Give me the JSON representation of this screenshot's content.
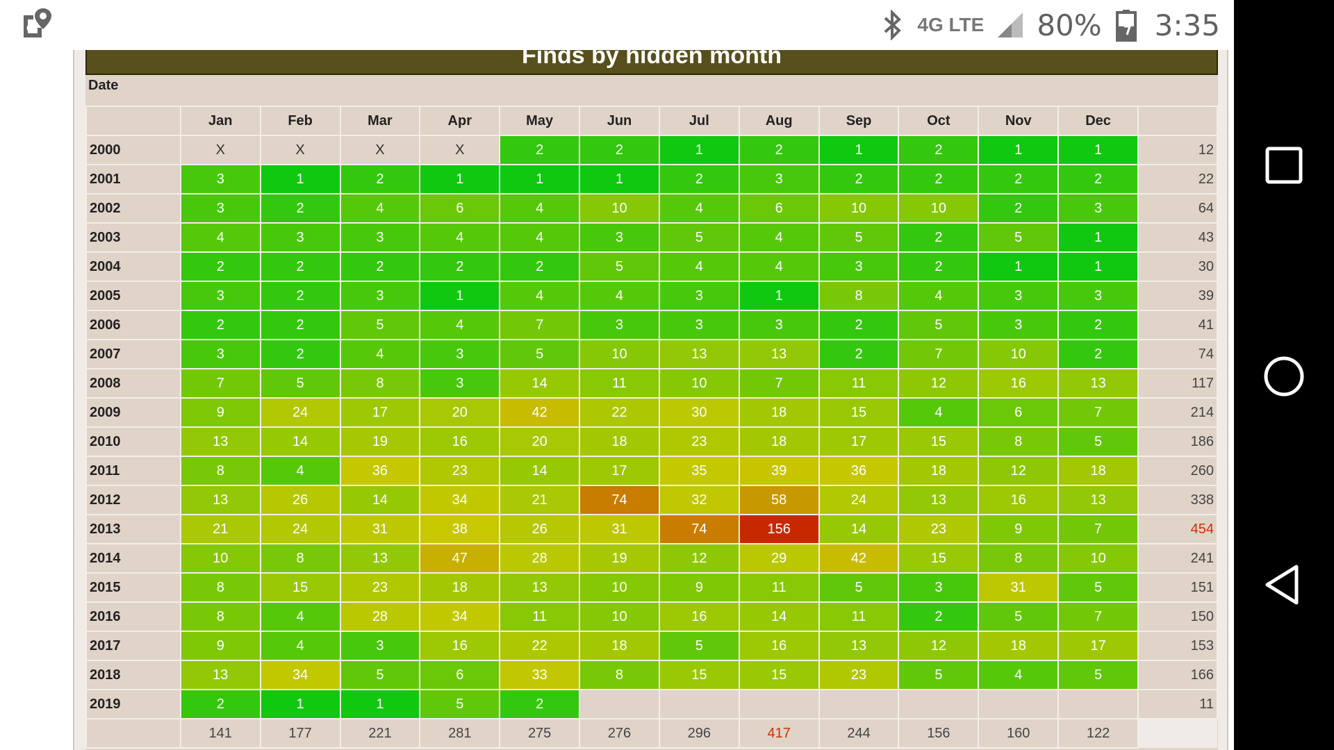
{
  "status_bar": {
    "left_icon": "maps-location-icon",
    "network": "4G LTE",
    "battery": "80%",
    "time": "3:35"
  },
  "page": {
    "title": "Finds by hidden month",
    "date_label": "Date"
  },
  "table": {
    "months": [
      "Jan",
      "Feb",
      "Mar",
      "Apr",
      "May",
      "Jun",
      "Jul",
      "Aug",
      "Sep",
      "Oct",
      "Nov",
      "Dec"
    ],
    "rows": [
      {
        "year": "2000",
        "cells": [
          "X",
          "X",
          "X",
          "X",
          "2",
          "2",
          "1",
          "2",
          "1",
          "2",
          "1",
          "1"
        ],
        "total": "12"
      },
      {
        "year": "2001",
        "cells": [
          "3",
          "1",
          "2",
          "1",
          "1",
          "1",
          "2",
          "3",
          "2",
          "2",
          "2",
          "2"
        ],
        "total": "22"
      },
      {
        "year": "2002",
        "cells": [
          "3",
          "2",
          "4",
          "6",
          "4",
          "10",
          "4",
          "6",
          "10",
          "10",
          "2",
          "3"
        ],
        "total": "64"
      },
      {
        "year": "2003",
        "cells": [
          "4",
          "3",
          "3",
          "4",
          "4",
          "3",
          "5",
          "4",
          "5",
          "2",
          "5",
          "1"
        ],
        "total": "43"
      },
      {
        "year": "2004",
        "cells": [
          "2",
          "2",
          "2",
          "2",
          "2",
          "5",
          "4",
          "4",
          "3",
          "2",
          "1",
          "1"
        ],
        "total": "30"
      },
      {
        "year": "2005",
        "cells": [
          "3",
          "2",
          "3",
          "1",
          "4",
          "4",
          "3",
          "1",
          "8",
          "4",
          "3",
          "3"
        ],
        "total": "39"
      },
      {
        "year": "2006",
        "cells": [
          "2",
          "2",
          "5",
          "4",
          "7",
          "3",
          "3",
          "3",
          "2",
          "5",
          "3",
          "2"
        ],
        "total": "41"
      },
      {
        "year": "2007",
        "cells": [
          "3",
          "2",
          "4",
          "3",
          "5",
          "10",
          "13",
          "13",
          "2",
          "7",
          "10",
          "2"
        ],
        "total": "74"
      },
      {
        "year": "2008",
        "cells": [
          "7",
          "5",
          "8",
          "3",
          "14",
          "11",
          "10",
          "7",
          "11",
          "12",
          "16",
          "13"
        ],
        "total": "117"
      },
      {
        "year": "2009",
        "cells": [
          "9",
          "24",
          "17",
          "20",
          "42",
          "22",
          "30",
          "18",
          "15",
          "4",
          "6",
          "7"
        ],
        "total": "214"
      },
      {
        "year": "2010",
        "cells": [
          "13",
          "14",
          "19",
          "16",
          "20",
          "18",
          "23",
          "18",
          "17",
          "15",
          "8",
          "5"
        ],
        "total": "186"
      },
      {
        "year": "2011",
        "cells": [
          "8",
          "4",
          "36",
          "23",
          "14",
          "17",
          "35",
          "39",
          "36",
          "18",
          "12",
          "18"
        ],
        "total": "260"
      },
      {
        "year": "2012",
        "cells": [
          "13",
          "26",
          "14",
          "34",
          "21",
          "74",
          "32",
          "58",
          "24",
          "13",
          "16",
          "13"
        ],
        "total": "338"
      },
      {
        "year": "2013",
        "cells": [
          "21",
          "24",
          "31",
          "38",
          "26",
          "31",
          "74",
          "156",
          "14",
          "23",
          "9",
          "7"
        ],
        "total": "454"
      },
      {
        "year": "2014",
        "cells": [
          "10",
          "8",
          "13",
          "47",
          "28",
          "19",
          "12",
          "29",
          "42",
          "15",
          "8",
          "10"
        ],
        "total": "241"
      },
      {
        "year": "2015",
        "cells": [
          "8",
          "15",
          "23",
          "18",
          "13",
          "10",
          "9",
          "11",
          "5",
          "3",
          "31",
          "5"
        ],
        "total": "151"
      },
      {
        "year": "2016",
        "cells": [
          "8",
          "4",
          "28",
          "34",
          "11",
          "10",
          "16",
          "14",
          "11",
          "2",
          "5",
          "7"
        ],
        "total": "150"
      },
      {
        "year": "2017",
        "cells": [
          "9",
          "4",
          "3",
          "16",
          "22",
          "18",
          "5",
          "16",
          "13",
          "12",
          "18",
          "17"
        ],
        "total": "153"
      },
      {
        "year": "2018",
        "cells": [
          "13",
          "34",
          "5",
          "6",
          "33",
          "8",
          "15",
          "15",
          "23",
          "5",
          "4",
          "5"
        ],
        "total": "166"
      },
      {
        "year": "2019",
        "cells": [
          "2",
          "1",
          "1",
          "5",
          "2",
          "",
          "",
          "",
          "",
          "",
          "",
          ""
        ],
        "total": "11"
      }
    ],
    "month_totals": [
      "141",
      "177",
      "221",
      "281",
      "275",
      "276",
      "296",
      "417",
      "244",
      "156",
      "160",
      "122"
    ],
    "max_row_total": "454",
    "max_month_total": "417",
    "heat_colors": {
      "low": "#10c810",
      "mid": "#c8c800",
      "high": "#c82800"
    }
  },
  "nav_bar": {
    "buttons": [
      "recents-square-icon",
      "home-circle-icon",
      "back-triangle-icon"
    ]
  }
}
